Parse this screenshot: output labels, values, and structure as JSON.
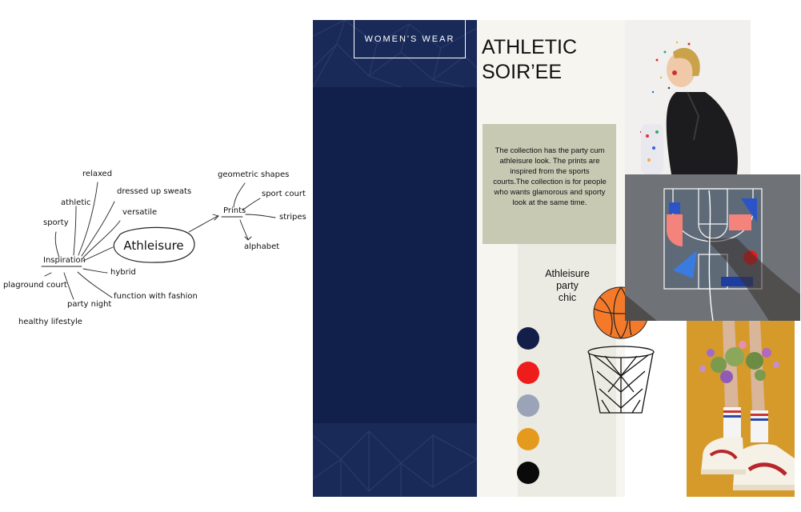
{
  "mindmap": {
    "center": "Athleisure",
    "inspiration": "Inspiration",
    "prints": "Prints",
    "inspiration_items": {
      "relaxed": "relaxed",
      "athletic": "athletic",
      "dressed_up_sweats": "dressed up sweats",
      "versatile": "versatile",
      "sporty": "sporty",
      "hybrid": "hybrid",
      "playground_court": "plaground court",
      "function_with_fashion": "function with fashion",
      "party_night": "party night",
      "healthy_lifestyle": "healthy lifestyle"
    },
    "print_items": {
      "geometric_shapes": "geometric shapes",
      "sport_court": "sport court",
      "stripes": "stripes",
      "alphabet": "alphabet"
    }
  },
  "board": {
    "category_label": "WOMEN'S WEAR",
    "title_line1": "ATHLETIC",
    "title_line2": "SOIR’EE",
    "description": "The collection has the party cum athleisure look. The prints are inspired from the sports courts.The collection is for people who wants glamorous and sporty look at the same time.",
    "tag_line1": "Athleisure",
    "tag_line2": "party",
    "tag_line3": "chic"
  },
  "palette": {
    "navy": "#131f48",
    "red": "#ef1c1c",
    "grey_blue": "#9aa3b8",
    "mustard": "#e39a1d",
    "black": "#0a0a0a",
    "panel_navy": "#11204a",
    "basketball_orange": "#f47a2a"
  }
}
